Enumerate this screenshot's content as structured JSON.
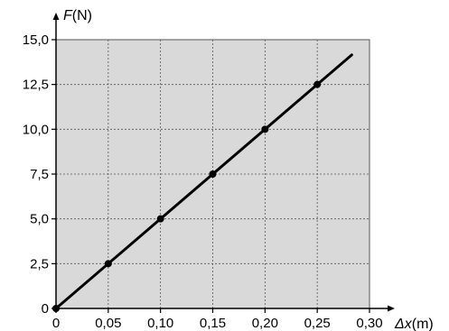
{
  "chart_data": {
    "type": "line",
    "y_axis_label": {
      "symbol": "F",
      "unit": "(N)"
    },
    "x_axis_label": {
      "symbol": "Δx",
      "unit": "(m)"
    },
    "xlim": [
      0,
      0.3
    ],
    "ylim": [
      0,
      15.0
    ],
    "x_ticks": [
      {
        "value": 0,
        "label": "0"
      },
      {
        "value": 0.05,
        "label": "0,05"
      },
      {
        "value": 0.1,
        "label": "0,10"
      },
      {
        "value": 0.15,
        "label": "0,15"
      },
      {
        "value": 0.2,
        "label": "0,20"
      },
      {
        "value": 0.25,
        "label": "0,25"
      },
      {
        "value": 0.3,
        "label": "0,30"
      }
    ],
    "y_ticks": [
      {
        "value": 0,
        "label": "0"
      },
      {
        "value": 2.5,
        "label": "2,5"
      },
      {
        "value": 5.0,
        "label": "5,0"
      },
      {
        "value": 7.5,
        "label": "7,5"
      },
      {
        "value": 10.0,
        "label": "10,0"
      },
      {
        "value": 12.5,
        "label": "12,5"
      },
      {
        "value": 15.0,
        "label": "15,0"
      }
    ],
    "grid": true,
    "plot_background": "#d9d9d9",
    "line_color": "#000000",
    "series": [
      {
        "points": [
          {
            "x": 0,
            "y": 0
          },
          {
            "x": 0.05,
            "y": 2.5
          },
          {
            "x": 0.1,
            "y": 5.0
          },
          {
            "x": 0.15,
            "y": 7.5
          },
          {
            "x": 0.2,
            "y": 10.0
          },
          {
            "x": 0.25,
            "y": 12.5
          }
        ],
        "line_end": {
          "x": 0.283,
          "y": 14.15
        }
      }
    ]
  }
}
